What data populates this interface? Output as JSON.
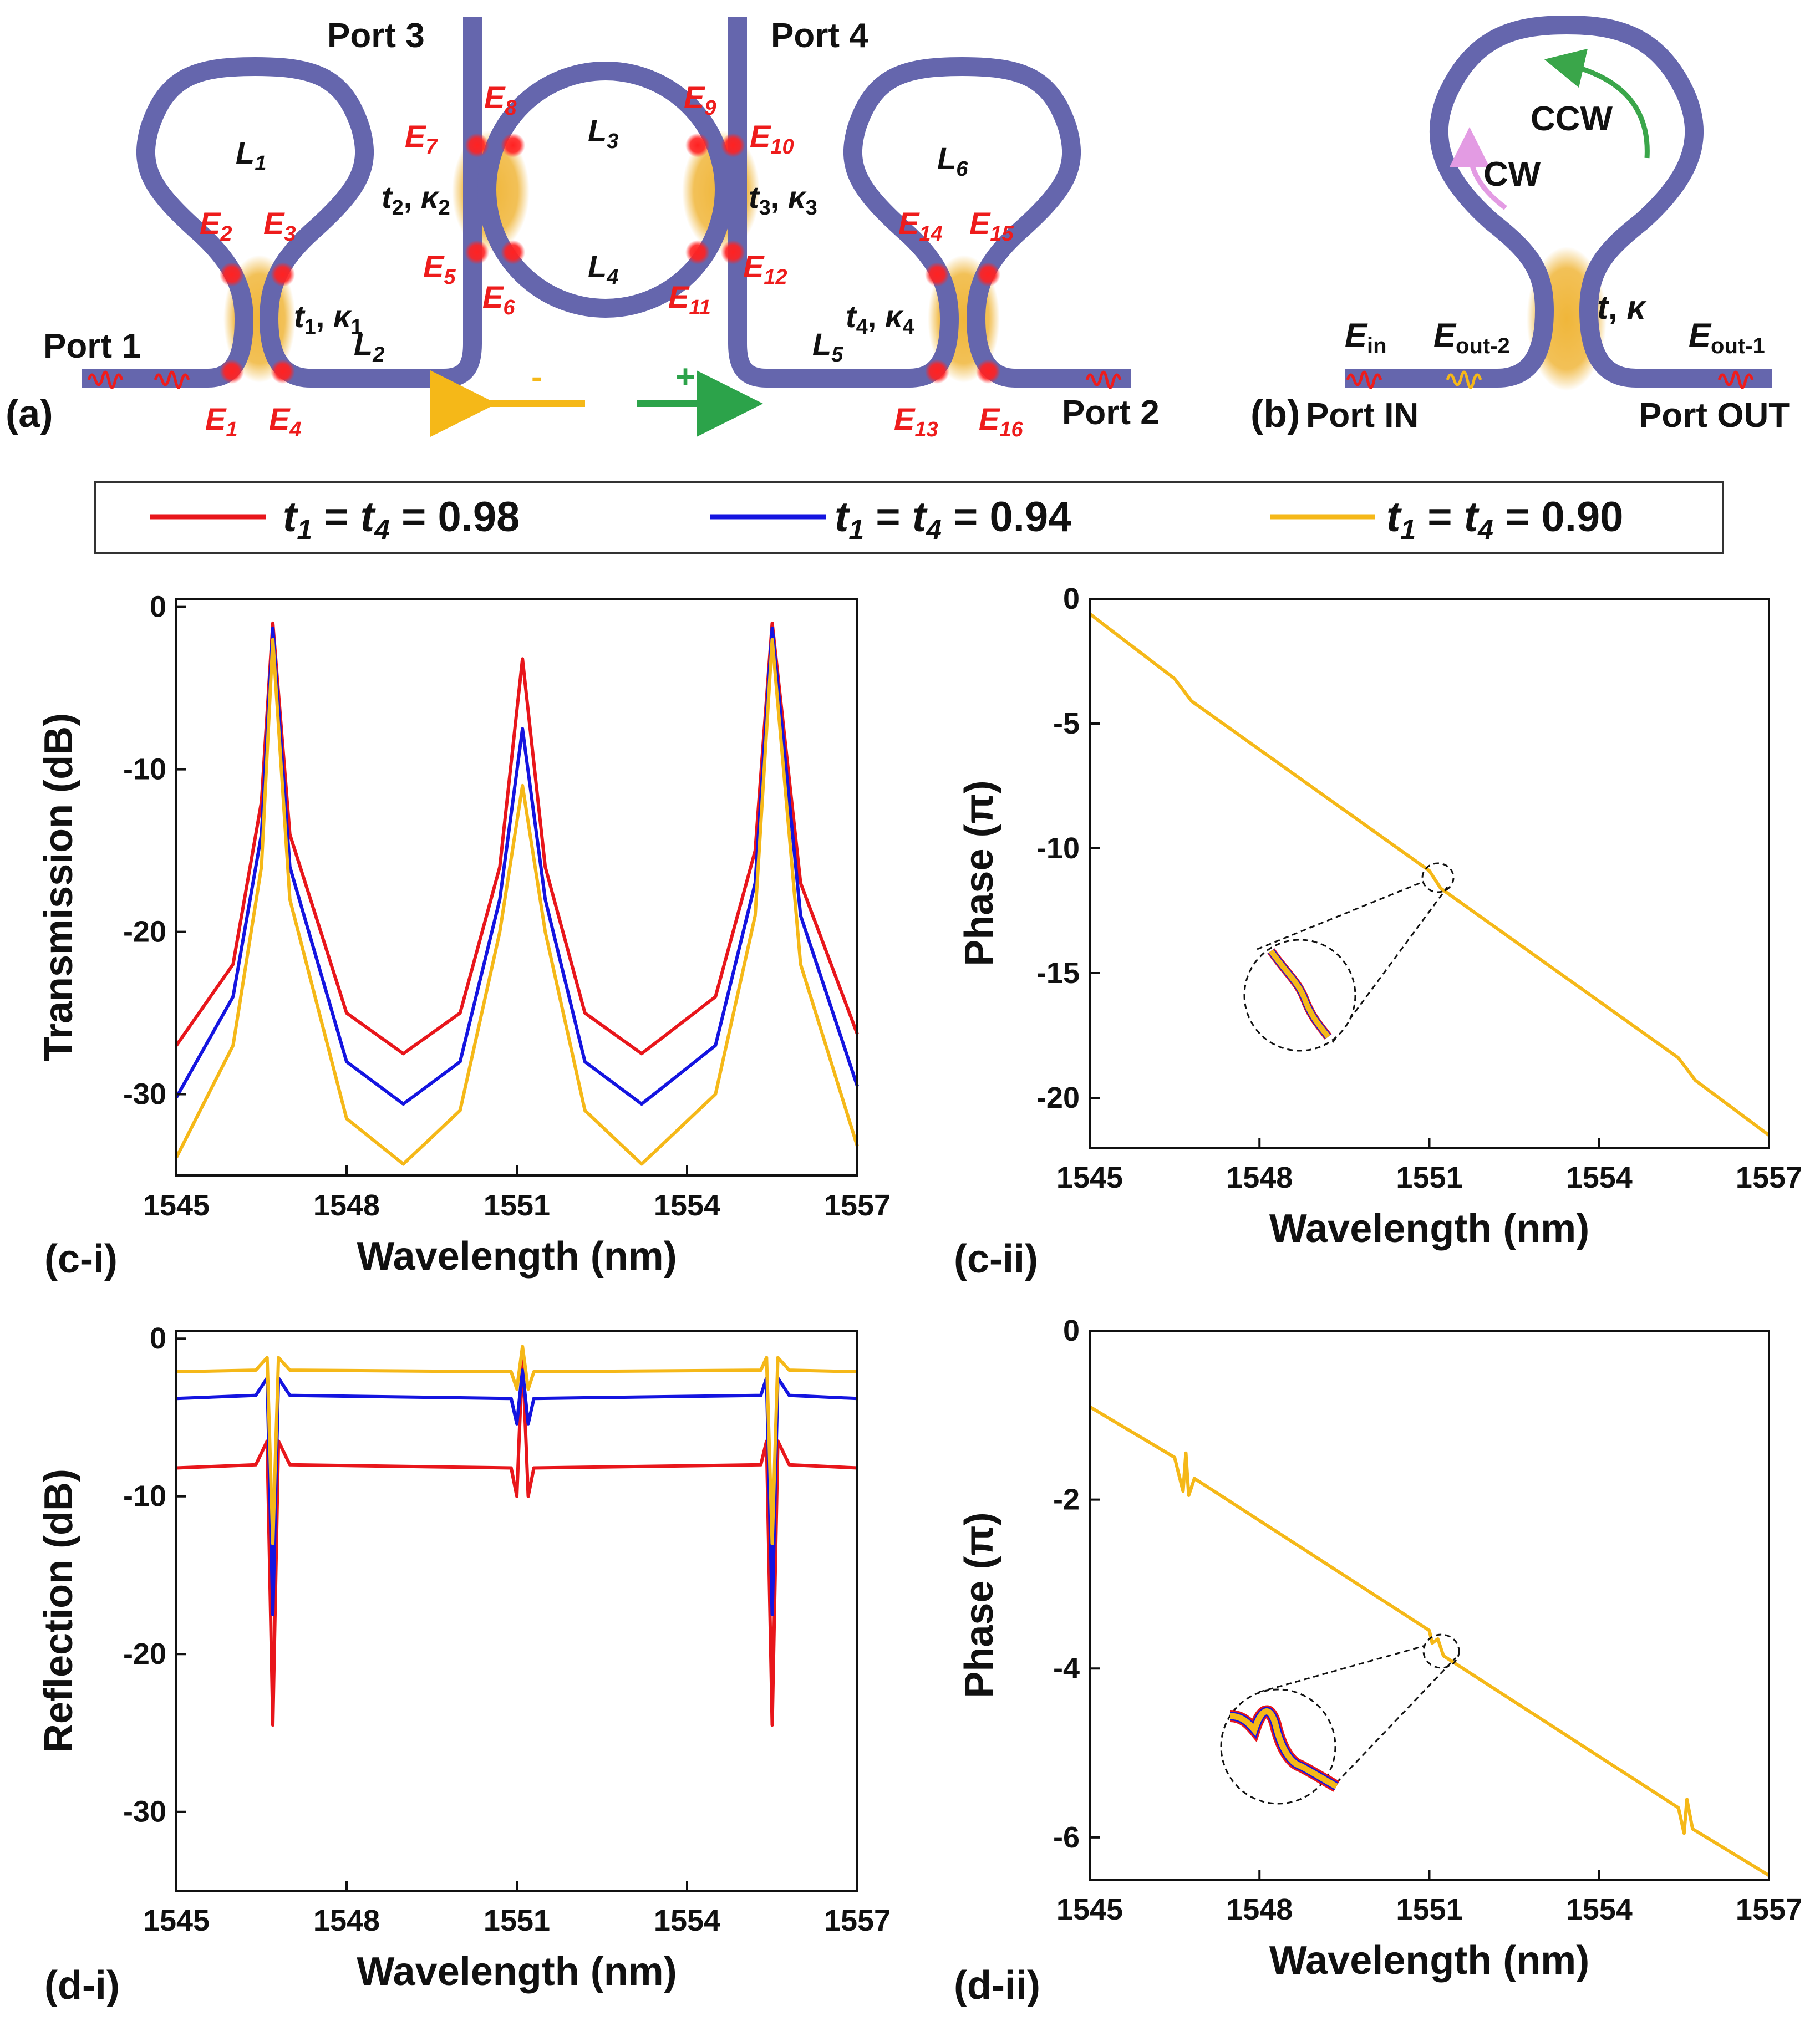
{
  "diagram_a": {
    "panel_label": "(a)",
    "ports": {
      "p1": "Port 1",
      "p2": "Port 2",
      "p3": "Port 3",
      "p4": "Port 4"
    },
    "fields": [
      "E1",
      "E2",
      "E3",
      "E4",
      "E5",
      "E6",
      "E7",
      "E8",
      "E9",
      "E10",
      "E11",
      "E12",
      "E13",
      "E14",
      "E15",
      "E16"
    ],
    "fields_parts": [
      {
        "b": "E",
        "s": "1"
      },
      {
        "b": "E",
        "s": "2"
      },
      {
        "b": "E",
        "s": "3"
      },
      {
        "b": "E",
        "s": "4"
      },
      {
        "b": "E",
        "s": "5"
      },
      {
        "b": "E",
        "s": "6"
      },
      {
        "b": "E",
        "s": "7"
      },
      {
        "b": "E",
        "s": "8"
      },
      {
        "b": "E",
        "s": "9"
      },
      {
        "b": "E",
        "s": "10"
      },
      {
        "b": "E",
        "s": "11"
      },
      {
        "b": "E",
        "s": "12"
      },
      {
        "b": "E",
        "s": "13"
      },
      {
        "b": "E",
        "s": "14"
      },
      {
        "b": "E",
        "s": "15"
      },
      {
        "b": "E",
        "s": "16"
      }
    ],
    "lengths": [
      {
        "b": "L",
        "s": "1"
      },
      {
        "b": "L",
        "s": "2"
      },
      {
        "b": "L",
        "s": "3"
      },
      {
        "b": "L",
        "s": "4"
      },
      {
        "b": "L",
        "s": "5"
      },
      {
        "b": "L",
        "s": "6"
      }
    ],
    "couplers": [
      {
        "t": "t",
        "ts": "1",
        "k": "κ",
        "ks": "1"
      },
      {
        "t": "t",
        "ts": "2",
        "k": "κ",
        "ks": "2"
      },
      {
        "t": "t",
        "ts": "3",
        "k": "κ",
        "ks": "3"
      },
      {
        "t": "t",
        "ts": "4",
        "k": "κ",
        "ks": "4"
      }
    ],
    "comma": ", ",
    "minus": "-",
    "plus": "+"
  },
  "diagram_b": {
    "panel_label": "(b)",
    "port_in": "Port IN",
    "port_out": "Port OUT",
    "e_in": {
      "b": "E",
      "s": "in"
    },
    "e_out2": {
      "b": "E",
      "s": "out-2"
    },
    "e_out1": {
      "b": "E",
      "s": "out-1"
    },
    "cw": "CW",
    "ccw": "CCW",
    "coupler": {
      "t": "t",
      "k": "κ"
    }
  },
  "legend": [
    {
      "name": "t1 = t4 = 0.98",
      "a": "t",
      "as": "1",
      "mid": " = ",
      "b": "t",
      "bs": "4",
      "val": " = 0.98",
      "color": "#e8161b"
    },
    {
      "name": "t1 = t4 = 0.94",
      "a": "t",
      "as": "1",
      "mid": " = ",
      "b": "t",
      "bs": "4",
      "val": " = 0.94",
      "color": "#1414e0"
    },
    {
      "name": "t1 = t4 = 0.90",
      "a": "t",
      "as": "1",
      "mid": " = ",
      "b": "t",
      "bs": "4",
      "val": " = 0.90",
      "color": "#f5b818"
    }
  ],
  "colors": {
    "waveguide": "#6566ad",
    "coupler": "#f0b63a",
    "red": "#e8161b",
    "blue": "#1414e0",
    "yellow": "#f5b818",
    "ccw": "#3aa64a",
    "cw": "#e39be3"
  },
  "chart_data": [
    {
      "panel_label": "(c-i)",
      "type": "line",
      "xlabel": "Wavelength (nm)",
      "ylabel": "Transmission (dB)",
      "xlim": [
        1545,
        1557
      ],
      "ylim": [
        -35,
        0.5
      ],
      "xticks": [
        1545,
        1548,
        1551,
        1554,
        1557
      ],
      "yticks": [
        0,
        -10,
        -20,
        -30
      ],
      "xtick_labels": [
        "1545",
        "1548",
        "1551",
        "1554",
        "1557"
      ],
      "ytick_labels": [
        "0",
        "-10",
        "-20",
        "-30"
      ],
      "series": [
        {
          "name": "t1 = t4 = 0.98",
          "color": "#e8161b",
          "x": [
            1545,
            1546,
            1546.5,
            1546.7,
            1547,
            1548,
            1549,
            1550,
            1550.7,
            1551.1,
            1551.5,
            1552.2,
            1553.2,
            1554.5,
            1555.2,
            1555.5,
            1556,
            1557
          ],
          "y": [
            -27,
            -22,
            -12,
            -1,
            -14,
            -25,
            -27.5,
            -25,
            -16,
            -3.2,
            -16,
            -25,
            -27.5,
            -24,
            -15,
            -1,
            -17,
            -26.3
          ]
        },
        {
          "name": "t1 = t4 = 0.94",
          "color": "#1414e0",
          "x": [
            1545,
            1546,
            1546.5,
            1546.7,
            1547,
            1548,
            1549,
            1550,
            1550.7,
            1551.1,
            1551.5,
            1552.2,
            1553.2,
            1554.5,
            1555.2,
            1555.5,
            1556,
            1557
          ],
          "y": [
            -30.2,
            -24,
            -14,
            -1.3,
            -16,
            -28,
            -30.6,
            -28,
            -18,
            -7.5,
            -18,
            -28,
            -30.6,
            -27,
            -17,
            -1.3,
            -19,
            -29.5
          ]
        },
        {
          "name": "t1 = t4 = 0.90",
          "color": "#f5b818",
          "x": [
            1545,
            1546,
            1546.5,
            1546.7,
            1547,
            1548,
            1549,
            1550,
            1550.7,
            1551.1,
            1551.5,
            1552.2,
            1553.2,
            1554.5,
            1555.2,
            1555.5,
            1556,
            1557
          ],
          "y": [
            -33.9,
            -27,
            -16,
            -2,
            -18,
            -31.5,
            -34.3,
            -31,
            -20,
            -11,
            -20,
            -31,
            -34.3,
            -30,
            -19,
            -2,
            -22,
            -33.2
          ]
        }
      ]
    },
    {
      "panel_label": "(c-ii)",
      "type": "line",
      "xlabel": "Wavelength (nm)",
      "ylabel": "Phase (π)",
      "xlim": [
        1545,
        1557
      ],
      "ylim": [
        -22,
        0
      ],
      "xticks": [
        1545,
        1548,
        1551,
        1554,
        1557
      ],
      "yticks": [
        0,
        -5,
        -10,
        -15,
        -20
      ],
      "xtick_labels": [
        "1545",
        "1548",
        "1551",
        "1554",
        "1557"
      ],
      "ytick_labels": [
        "0",
        "-5",
        "-10",
        "-15",
        "-20"
      ],
      "series": [
        {
          "name": "t1 = t4 = 0.90",
          "color": "#f5b818",
          "x": [
            1545,
            1546.5,
            1546.6,
            1546.8,
            1551,
            1551.2,
            1555.4,
            1555.5,
            1555.7,
            1557
          ],
          "y": [
            -0.6,
            -3.2,
            -3.5,
            -4.1,
            -10.9,
            -11.6,
            -18.4,
            -18.7,
            -19.3,
            -21.5
          ]
        }
      ]
    },
    {
      "panel_label": "(d-i)",
      "type": "line",
      "xlabel": "Wavelength (nm)",
      "ylabel": "Reflection (dB)",
      "xlim": [
        1545,
        1557
      ],
      "ylim": [
        -35,
        0.5
      ],
      "xticks": [
        1545,
        1548,
        1551,
        1554,
        1557
      ],
      "yticks": [
        0,
        -10,
        -20,
        -30
      ],
      "xtick_labels": [
        "1545",
        "1548",
        "1551",
        "1554",
        "1557"
      ],
      "ytick_labels": [
        "0",
        "-10",
        "-20",
        "-30"
      ],
      "series": [
        {
          "name": "t1 = t4 = 0.98",
          "color": "#e8161b",
          "x": [
            1545,
            1546.4,
            1546.6,
            1546.7,
            1546.8,
            1547,
            1550.9,
            1551,
            1551.1,
            1551.2,
            1551.3,
            1555.3,
            1555.4,
            1555.5,
            1555.6,
            1555.8,
            1557
          ],
          "y": [
            -8.2,
            -8,
            -6.5,
            -24.5,
            -6.5,
            -8,
            -8.2,
            -10,
            -1,
            -10,
            -8.2,
            -8,
            -6.5,
            -24.5,
            -6.5,
            -8,
            -8.2
          ]
        },
        {
          "name": "t1 = t4 = 0.94",
          "color": "#1414e0",
          "x": [
            1545,
            1546.4,
            1546.6,
            1546.7,
            1546.8,
            1547,
            1550.9,
            1551,
            1551.1,
            1551.2,
            1551.3,
            1555.3,
            1555.4,
            1555.5,
            1555.6,
            1555.8,
            1557
          ],
          "y": [
            -3.8,
            -3.6,
            -2.5,
            -17.5,
            -2.5,
            -3.6,
            -3.8,
            -5.4,
            -2,
            -5.4,
            -3.8,
            -3.6,
            -2.5,
            -17.5,
            -2.5,
            -3.6,
            -3.8
          ]
        },
        {
          "name": "t1 = t4 = 0.90",
          "color": "#f5b818",
          "x": [
            1545,
            1546.4,
            1546.6,
            1546.7,
            1546.8,
            1547,
            1550.9,
            1551,
            1551.1,
            1551.2,
            1551.3,
            1555.3,
            1555.4,
            1555.5,
            1555.6,
            1555.8,
            1557
          ],
          "y": [
            -2.1,
            -2,
            -1.2,
            -13,
            -1.2,
            -2,
            -2.1,
            -3.2,
            -0.5,
            -3.2,
            -2.1,
            -2,
            -1.2,
            -13,
            -1.2,
            -2,
            -2.1
          ]
        }
      ]
    },
    {
      "panel_label": "(d-ii)",
      "type": "line",
      "xlabel": "Wavelength (nm)",
      "ylabel": "Phase (π)",
      "xlim": [
        1545,
        1557
      ],
      "ylim": [
        -6.5,
        0
      ],
      "xticks": [
        1545,
        1548,
        1551,
        1554,
        1557
      ],
      "yticks": [
        0,
        -2,
        -4,
        -6
      ],
      "xtick_labels": [
        "1545",
        "1548",
        "1551",
        "1554",
        "1557"
      ],
      "ytick_labels": [
        "0",
        "-2",
        "-4",
        "-6"
      ],
      "series": [
        {
          "name": "t1 = t4 = 0.90",
          "color": "#f5b818",
          "x": [
            1545,
            1546.5,
            1546.65,
            1546.7,
            1546.75,
            1546.85,
            1551,
            1551.05,
            1551.15,
            1551.25,
            1555.4,
            1555.5,
            1555.55,
            1555.65,
            1557
          ],
          "y": [
            -0.9,
            -1.5,
            -1.9,
            -1.45,
            -1.95,
            -1.75,
            -3.55,
            -3.7,
            -3.65,
            -3.85,
            -5.65,
            -5.95,
            -5.55,
            -5.9,
            -6.45
          ]
        }
      ]
    }
  ]
}
